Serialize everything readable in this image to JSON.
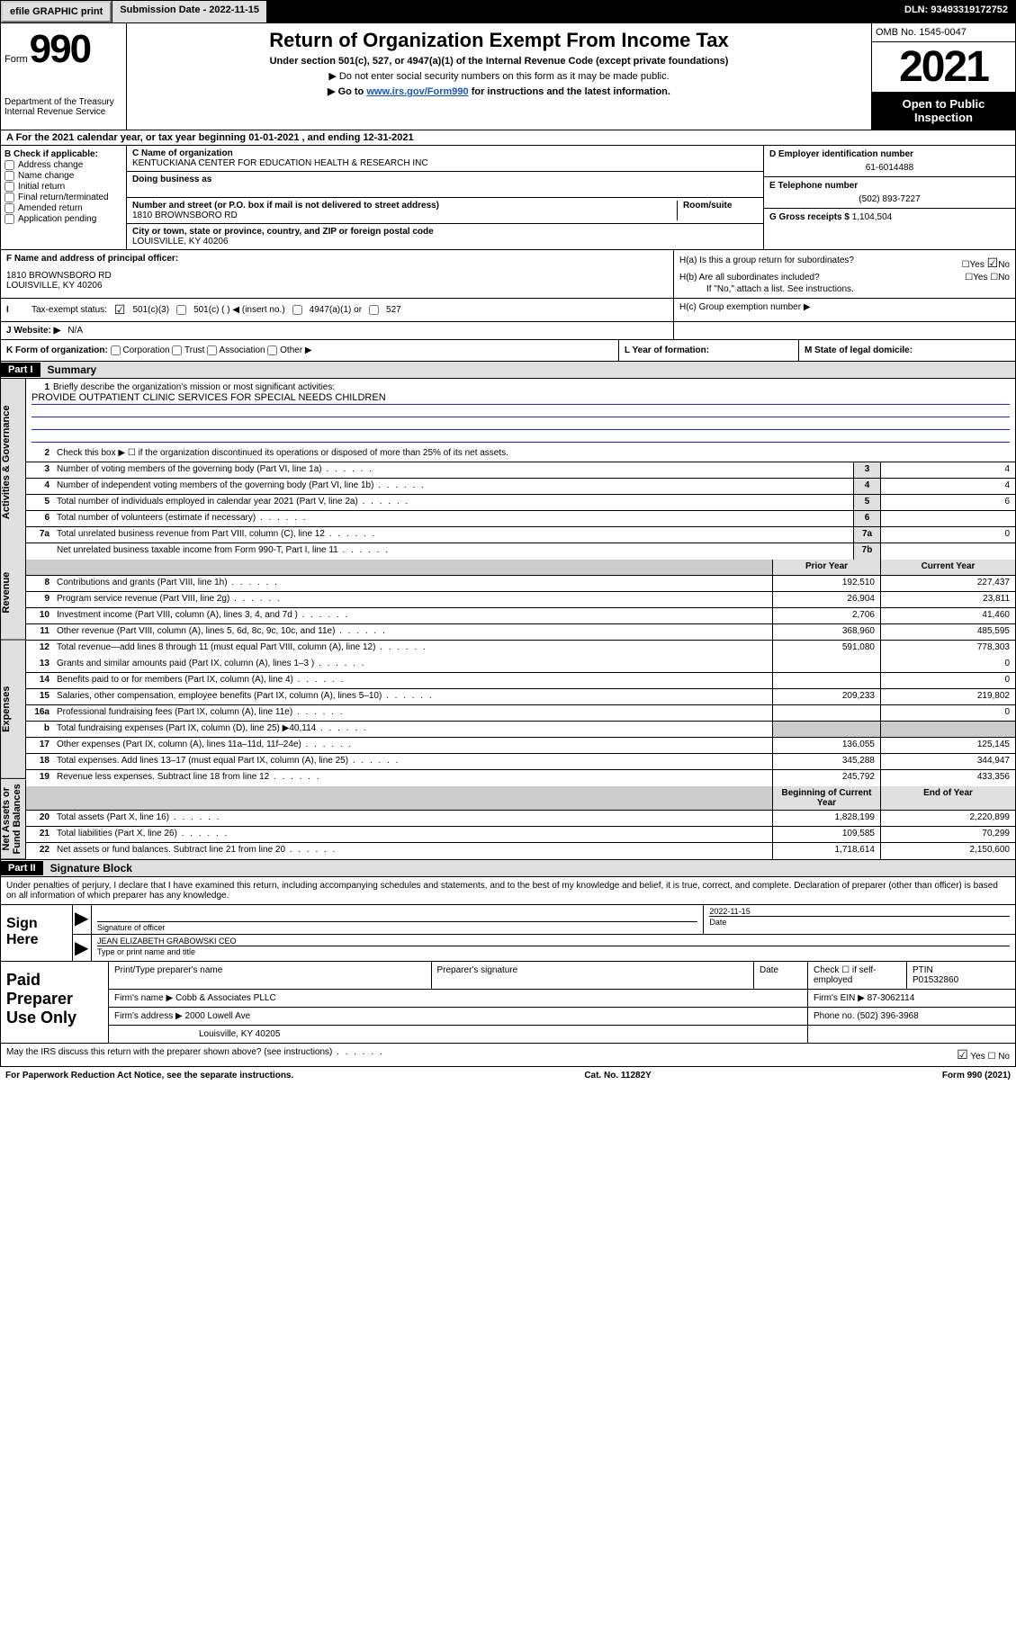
{
  "top": {
    "efile": "efile GRAPHIC print",
    "sub_date_label": "Submission Date - 2022-11-15",
    "dln": "DLN: 93493319172752"
  },
  "header": {
    "form_word": "Form",
    "form_num": "990",
    "dept": "Department of the Treasury\nInternal Revenue Service",
    "title": "Return of Organization Exempt From Income Tax",
    "subtitle": "Under section 501(c), 527, or 4947(a)(1) of the Internal Revenue Code (except private foundations)",
    "instr1": "Do not enter social security numbers on this form as it may be made public.",
    "instr2_pre": "Go to ",
    "instr2_link": "www.irs.gov/Form990",
    "instr2_post": " for instructions and the latest information.",
    "omb": "OMB No. 1545-0047",
    "year": "2021",
    "inspection": "Open to Public Inspection"
  },
  "rowA": "A For the 2021 calendar year, or tax year beginning 01-01-2021   , and ending 12-31-2021",
  "B": {
    "label": "B Check if applicable:",
    "items": [
      "Address change",
      "Name change",
      "Initial return",
      "Final return/terminated",
      "Amended return",
      "Application pending"
    ]
  },
  "C": {
    "name_label": "C Name of organization",
    "name": "KENTUCKIANA CENTER FOR EDUCATION HEALTH & RESEARCH INC",
    "dba_label": "Doing business as",
    "addr_label": "Number and street (or P.O. box if mail is not delivered to street address)",
    "room_label": "Room/suite",
    "addr": "1810 BROWNSBORO RD",
    "city_label": "City or town, state or province, country, and ZIP or foreign postal code",
    "city": "LOUISVILLE, KY  40206"
  },
  "D": {
    "label": "D Employer identification number",
    "val": "61-6014488"
  },
  "E": {
    "label": "E Telephone number",
    "val": "(502) 893-7227"
  },
  "G": {
    "label": "G Gross receipts $",
    "val": "1,104,504"
  },
  "F": {
    "label": "F Name and address of principal officer:",
    "addr1": "1810 BROWNSBORO RD",
    "addr2": "LOUISVILLE, KY  40206"
  },
  "H": {
    "a": "H(a)  Is this a group return for subordinates?",
    "b": "H(b)  Are all subordinates included?",
    "b_note": "If \"No,\" attach a list. See instructions.",
    "c": "H(c)  Group exemption number ▶"
  },
  "I": {
    "label": "Tax-exempt status:",
    "opts": [
      "501(c)(3)",
      "501(c) (  ) ◀ (insert no.)",
      "4947(a)(1) or",
      "527"
    ]
  },
  "J": {
    "label": "J   Website: ▶",
    "val": "N/A"
  },
  "K": "K Form of organization:",
  "K_opts": [
    "Corporation",
    "Trust",
    "Association",
    "Other ▶"
  ],
  "L": "L Year of formation:",
  "M": "M State of legal domicile:",
  "partI": {
    "tag": "Part I",
    "title": "Summary"
  },
  "summary": {
    "sideA": "Activities & Governance",
    "sideR": "Revenue",
    "sideE": "Expenses",
    "sideN": "Net Assets or Fund Balances",
    "line1": "Briefly describe the organization's mission or most significant activities:",
    "mission": "PROVIDE OUTPATIENT CLINIC SERVICES FOR SPECIAL NEEDS CHILDREN",
    "line2": "Check this box ▶ ☐  if the organization discontinued its operations or disposed of more than 25% of its net assets.",
    "rows_num": [
      {
        "n": "3",
        "d": "Number of voting members of the governing body (Part VI, line 1a)",
        "k": "3",
        "v": "4"
      },
      {
        "n": "4",
        "d": "Number of independent voting members of the governing body (Part VI, line 1b)",
        "k": "4",
        "v": "4"
      },
      {
        "n": "5",
        "d": "Total number of individuals employed in calendar year 2021 (Part V, line 2a)",
        "k": "5",
        "v": "6"
      },
      {
        "n": "6",
        "d": "Total number of volunteers (estimate if necessary)",
        "k": "6",
        "v": ""
      },
      {
        "n": "7a",
        "d": "Total unrelated business revenue from Part VIII, column (C), line 12",
        "k": "7a",
        "v": "0"
      },
      {
        "n": "",
        "d": "Net unrelated business taxable income from Form 990-T, Part I, line 11",
        "k": "7b",
        "v": ""
      }
    ],
    "head_prior": "Prior Year",
    "head_curr": "Current Year",
    "rev": [
      {
        "n": "8",
        "d": "Contributions and grants (Part VIII, line 1h)",
        "p": "192,510",
        "c": "227,437"
      },
      {
        "n": "9",
        "d": "Program service revenue (Part VIII, line 2g)",
        "p": "26,904",
        "c": "23,811"
      },
      {
        "n": "10",
        "d": "Investment income (Part VIII, column (A), lines 3, 4, and 7d )",
        "p": "2,706",
        "c": "41,460"
      },
      {
        "n": "11",
        "d": "Other revenue (Part VIII, column (A), lines 5, 6d, 8c, 9c, 10c, and 11e)",
        "p": "368,960",
        "c": "485,595"
      },
      {
        "n": "12",
        "d": "Total revenue—add lines 8 through 11 (must equal Part VIII, column (A), line 12)",
        "p": "591,080",
        "c": "778,303"
      }
    ],
    "exp": [
      {
        "n": "13",
        "d": "Grants and similar amounts paid (Part IX, column (A), lines 1–3 )",
        "p": "",
        "c": "0"
      },
      {
        "n": "14",
        "d": "Benefits paid to or for members (Part IX, column (A), line 4)",
        "p": "",
        "c": "0"
      },
      {
        "n": "15",
        "d": "Salaries, other compensation, employee benefits (Part IX, column (A), lines 5–10)",
        "p": "209,233",
        "c": "219,802"
      },
      {
        "n": "16a",
        "d": "Professional fundraising fees (Part IX, column (A), line 11e)",
        "p": "",
        "c": "0"
      },
      {
        "n": "b",
        "d": "Total fundraising expenses (Part IX, column (D), line 25) ▶40,114",
        "p": "shaded",
        "c": "shaded"
      },
      {
        "n": "17",
        "d": "Other expenses (Part IX, column (A), lines 11a–11d, 11f–24e)",
        "p": "136,055",
        "c": "125,145"
      },
      {
        "n": "18",
        "d": "Total expenses. Add lines 13–17 (must equal Part IX, column (A), line 25)",
        "p": "345,288",
        "c": "344,947"
      },
      {
        "n": "19",
        "d": "Revenue less expenses. Subtract line 18 from line 12",
        "p": "245,792",
        "c": "433,356"
      }
    ],
    "head_begin": "Beginning of Current Year",
    "head_end": "End of Year",
    "net": [
      {
        "n": "20",
        "d": "Total assets (Part X, line 16)",
        "p": "1,828,199",
        "c": "2,220,899"
      },
      {
        "n": "21",
        "d": "Total liabilities (Part X, line 26)",
        "p": "109,585",
        "c": "70,299"
      },
      {
        "n": "22",
        "d": "Net assets or fund balances. Subtract line 21 from line 20",
        "p": "1,718,614",
        "c": "2,150,600"
      }
    ]
  },
  "partII": {
    "tag": "Part II",
    "title": "Signature Block"
  },
  "sig": {
    "decl": "Under penalties of perjury, I declare that I have examined this return, including accompanying schedules and statements, and to the best of my knowledge and belief, it is true, correct, and complete. Declaration of preparer (other than officer) is based on all information of which preparer has any knowledge.",
    "sign_here": "Sign Here",
    "sig_officer": "Signature of officer",
    "date_label": "Date",
    "date": "2022-11-15",
    "name": "JEAN ELIZABETH GRABOWSKI  CEO",
    "name_label": "Type or print name and title"
  },
  "paid": {
    "title": "Paid Preparer Use Only",
    "h1": "Print/Type preparer's name",
    "h2": "Preparer's signature",
    "h3": "Date",
    "h4_pre": "Check ☐ if self-employed",
    "h5": "PTIN",
    "ptin": "P01532860",
    "firm_name_l": "Firm's name    ▶",
    "firm_name": "Cobb & Associates PLLC",
    "firm_ein_l": "Firm's EIN ▶",
    "firm_ein": "87-3062114",
    "firm_addr_l": "Firm's address ▶",
    "firm_addr1": "2000 Lowell Ave",
    "firm_addr2": "Louisville, KY  40205",
    "phone_l": "Phone no.",
    "phone": "(502) 396-3968"
  },
  "may": "May the IRS discuss this return with the preparer shown above? (see instructions)",
  "footer": {
    "l": "For Paperwork Reduction Act Notice, see the separate instructions.",
    "c": "Cat. No. 11282Y",
    "r": "Form 990 (2021)"
  }
}
